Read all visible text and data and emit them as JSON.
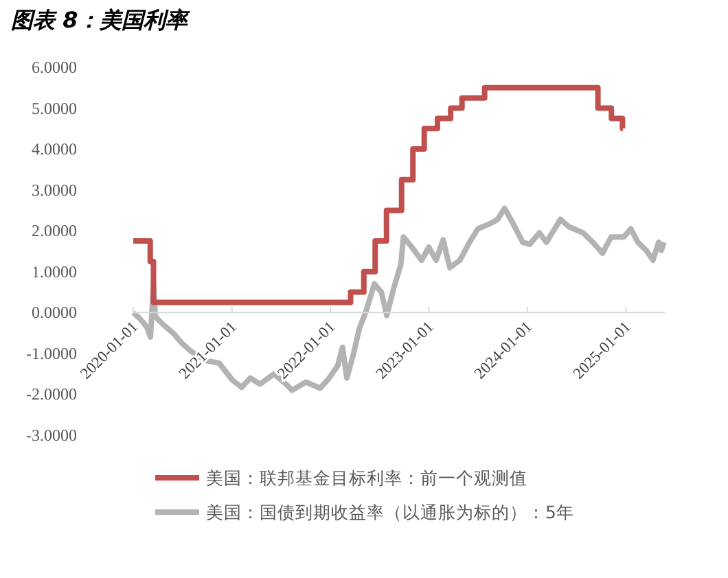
{
  "chart_data": {
    "type": "line",
    "title": "图表 8：美国利率",
    "xlim": [
      "2020-01-01",
      "2025-05-25"
    ],
    "ylim": [
      -3,
      6
    ],
    "xticks": [
      "2020-01-01",
      "2021-01-01",
      "2022-01-01",
      "2023-01-01",
      "2024-01-01",
      "2025-01-01"
    ],
    "yticks": [
      {
        "value": 6,
        "label": "6.0000"
      },
      {
        "value": 5,
        "label": "5.0000"
      },
      {
        "value": 4,
        "label": "4.0000"
      },
      {
        "value": 3,
        "label": "3.0000"
      },
      {
        "value": 2,
        "label": "2.0000"
      },
      {
        "value": 1,
        "label": "1.0000"
      },
      {
        "value": 0,
        "label": "0.0000"
      },
      {
        "value": -1,
        "label": "-1.0000"
      },
      {
        "value": -2,
        "label": "-2.0000"
      },
      {
        "value": -3,
        "label": "-3.0000"
      }
    ],
    "legend": "bottom",
    "series": [
      {
        "name": "美国：联邦基金目标利率：前一个观测值",
        "type": "step",
        "color": "#c0504d",
        "x": [
          "2020-01-01",
          "2020-03-04",
          "2020-03-16",
          "2022-03-17",
          "2022-05-05",
          "2022-06-16",
          "2022-07-28",
          "2022-09-22",
          "2022-11-03",
          "2022-12-15",
          "2023-02-02",
          "2023-03-23",
          "2023-05-04",
          "2023-07-27",
          "2024-09-19",
          "2024-11-08",
          "2024-12-19",
          "2024-12-20"
        ],
        "values": [
          1.75,
          1.25,
          0.25,
          0.5,
          1.0,
          1.75,
          2.5,
          3.25,
          4.0,
          4.5,
          4.75,
          5.0,
          5.25,
          5.5,
          5.0,
          4.75,
          4.5,
          4.5
        ]
      },
      {
        "name": "美国：国债到期收益率（以通胀为标的）：5年",
        "color": "#b3b3b3",
        "x": [
          "2020-01-01",
          "2020-01-26",
          "2020-02-20",
          "2020-03-05",
          "2020-03-16",
          "2020-03-23",
          "2020-04-22",
          "2020-05-28",
          "2020-06-28",
          "2020-08-03",
          "2020-09-25",
          "2020-11-15",
          "2021-01-01",
          "2021-02-06",
          "2021-03-10",
          "2021-04-15",
          "2021-06-06",
          "2021-07-12",
          "2021-08-12",
          "2021-10-03",
          "2021-11-24",
          "2021-12-28",
          "2022-01-28",
          "2022-02-15",
          "2022-03-03",
          "2022-03-28",
          "2022-04-18",
          "2022-05-13",
          "2022-06-13",
          "2022-07-09",
          "2022-07-29",
          "2022-08-24",
          "2022-09-19",
          "2022-09-29",
          "2022-10-30",
          "2022-12-05",
          "2023-01-01",
          "2023-01-28",
          "2023-02-23",
          "2023-03-20",
          "2023-04-26",
          "2023-06-01",
          "2023-07-02",
          "2023-08-18",
          "2023-09-13",
          "2023-10-09",
          "2023-11-09",
          "2023-12-15",
          "2024-01-10",
          "2024-02-15",
          "2024-03-12",
          "2024-05-03",
          "2024-06-03",
          "2024-07-26",
          "2024-08-31",
          "2024-10-06",
          "2024-11-07",
          "2024-12-24",
          "2025-01-19",
          "2025-02-14",
          "2025-03-17",
          "2025-04-11",
          "2025-05-02",
          "2025-05-12",
          "2025-05-22"
        ],
        "values": [
          0.0,
          -0.15,
          -0.35,
          -0.6,
          0.7,
          -0.1,
          -0.3,
          -0.5,
          -0.74,
          -0.95,
          -1.17,
          -1.24,
          -1.64,
          -1.83,
          -1.6,
          -1.75,
          -1.5,
          -1.7,
          -1.9,
          -1.7,
          -1.85,
          -1.6,
          -1.3,
          -0.85,
          -1.6,
          -1.0,
          -0.4,
          0.03,
          0.7,
          0.5,
          -0.07,
          0.6,
          1.17,
          1.85,
          1.6,
          1.28,
          1.6,
          1.28,
          1.78,
          1.1,
          1.28,
          1.72,
          2.05,
          2.18,
          2.28,
          2.55,
          2.18,
          1.72,
          1.67,
          1.95,
          1.72,
          2.28,
          2.1,
          1.95,
          1.72,
          1.45,
          1.85,
          1.85,
          2.05,
          1.72,
          1.52,
          1.28,
          1.72,
          1.52,
          1.72
        ]
      }
    ]
  }
}
